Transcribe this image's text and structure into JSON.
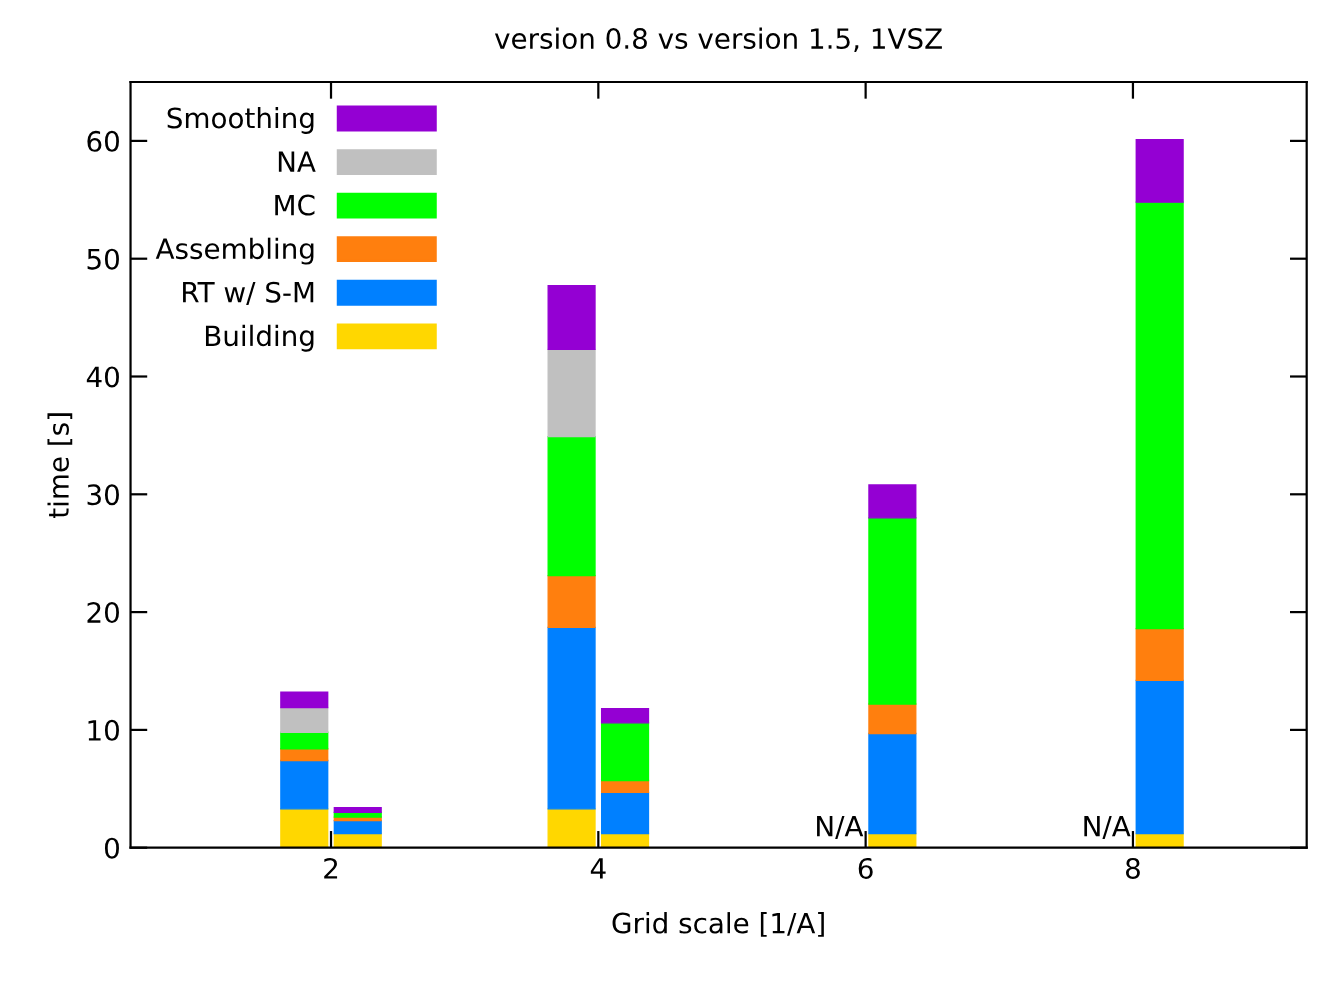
{
  "chart_data": {
    "type": "bar",
    "stacked": true,
    "title": "version 0.8 vs version 1.5, 1VSZ",
    "xlabel": "Grid scale [1/A]",
    "ylabel": "time [s]",
    "x": [
      1.8,
      2.2,
      3.8,
      4.2,
      5.8,
      6.2,
      7.8,
      8.2
    ],
    "series": [
      {
        "name": "Building",
        "color": "#ffd700",
        "values": [
          3.3,
          1.2,
          3.3,
          1.2,
          null,
          1.2,
          null,
          1.2
        ]
      },
      {
        "name": "RT w/ S-M",
        "color": "#0080ff",
        "values": [
          4.1,
          1.1,
          15.4,
          3.5,
          null,
          8.5,
          null,
          13.0
        ]
      },
      {
        "name": "Assembling",
        "color": "#ff7f0e",
        "values": [
          1.0,
          0.3,
          4.4,
          1.0,
          null,
          2.5,
          null,
          4.4
        ]
      },
      {
        "name": "MC",
        "color": "#00ff00",
        "values": [
          1.4,
          0.4,
          11.8,
          4.9,
          null,
          15.8,
          null,
          36.2
        ]
      },
      {
        "name": "NA",
        "color": "#c0c0c0",
        "values": [
          2.1,
          null,
          7.4,
          null,
          null,
          null,
          null,
          null
        ]
      },
      {
        "name": "Smoothing",
        "color": "#9400d3",
        "values": [
          1.3,
          0.4,
          5.4,
          1.2,
          null,
          2.8,
          null,
          5.3
        ]
      }
    ],
    "xlim": [
      0.5,
      9.3
    ],
    "xticks": [
      2,
      4,
      6,
      8
    ],
    "ylim": [
      0,
      65
    ],
    "yticks": [
      0,
      10,
      20,
      30,
      40,
      50,
      60
    ],
    "annotations": [
      "N/A",
      "N/A"
    ],
    "legend": "top left",
    "grid": false
  }
}
